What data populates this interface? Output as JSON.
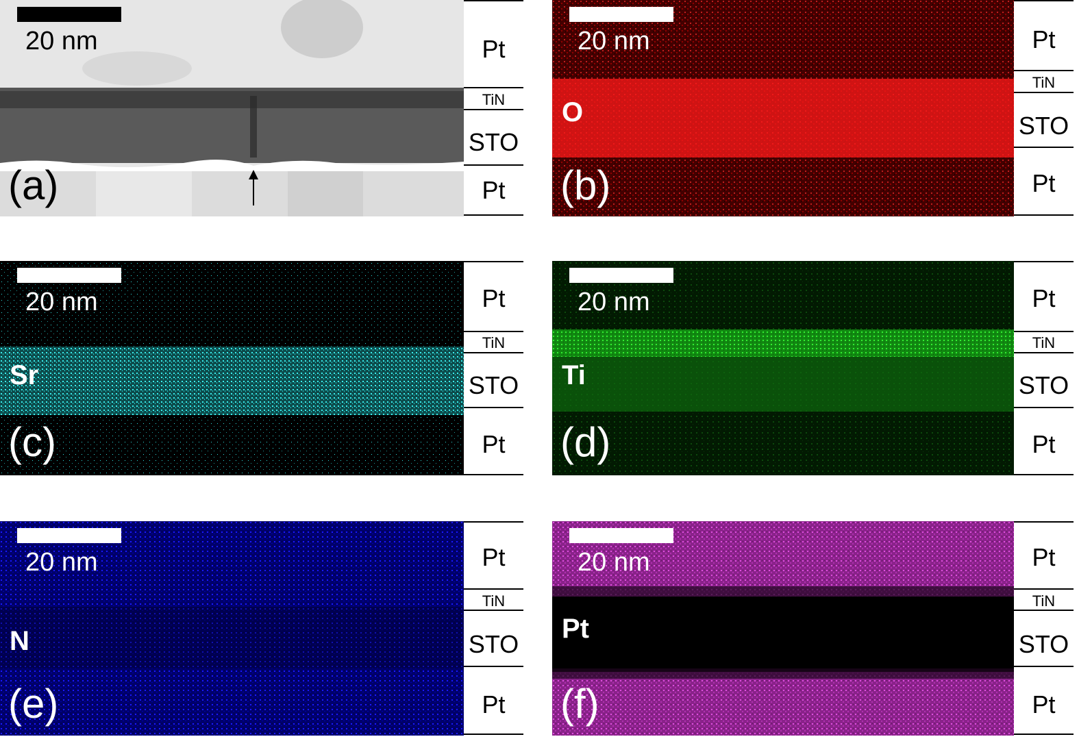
{
  "scale_label": "20 nm",
  "layers": {
    "top": "Pt",
    "tin": "TiN",
    "sto": "STO",
    "bottom": "Pt"
  },
  "panels": [
    {
      "id": "a",
      "label": "(a)",
      "element": "",
      "kind": "bf",
      "base": "#dcdcdc",
      "color": "#555555",
      "text_color": "#000000",
      "scalebar_color": "#000000"
    },
    {
      "id": "b",
      "label": "(b)",
      "element": "O",
      "kind": "map",
      "base": "#000000",
      "color": "#ff1a1a",
      "text_color": "#ffffff",
      "scalebar_color": "#ffffff"
    },
    {
      "id": "c",
      "label": "(c)",
      "element": "Sr",
      "kind": "map",
      "base": "#000000",
      "color": "#2ee6e6",
      "text_color": "#ffffff",
      "scalebar_color": "#ffffff"
    },
    {
      "id": "d",
      "label": "(d)",
      "element": "Ti",
      "kind": "map",
      "base": "#000000",
      "color": "#22dd22",
      "text_color": "#ffffff",
      "scalebar_color": "#ffffff"
    },
    {
      "id": "e",
      "label": "(e)",
      "element": "N",
      "kind": "map",
      "base": "#00003a",
      "color": "#1a1aff",
      "text_color": "#ffffff",
      "scalebar_color": "#ffffff"
    },
    {
      "id": "f",
      "label": "(f)",
      "element": "Pt",
      "kind": "map",
      "base": "#000000",
      "color": "#e040e0",
      "text_color": "#ffffff",
      "scalebar_color": "#ffffff"
    }
  ]
}
